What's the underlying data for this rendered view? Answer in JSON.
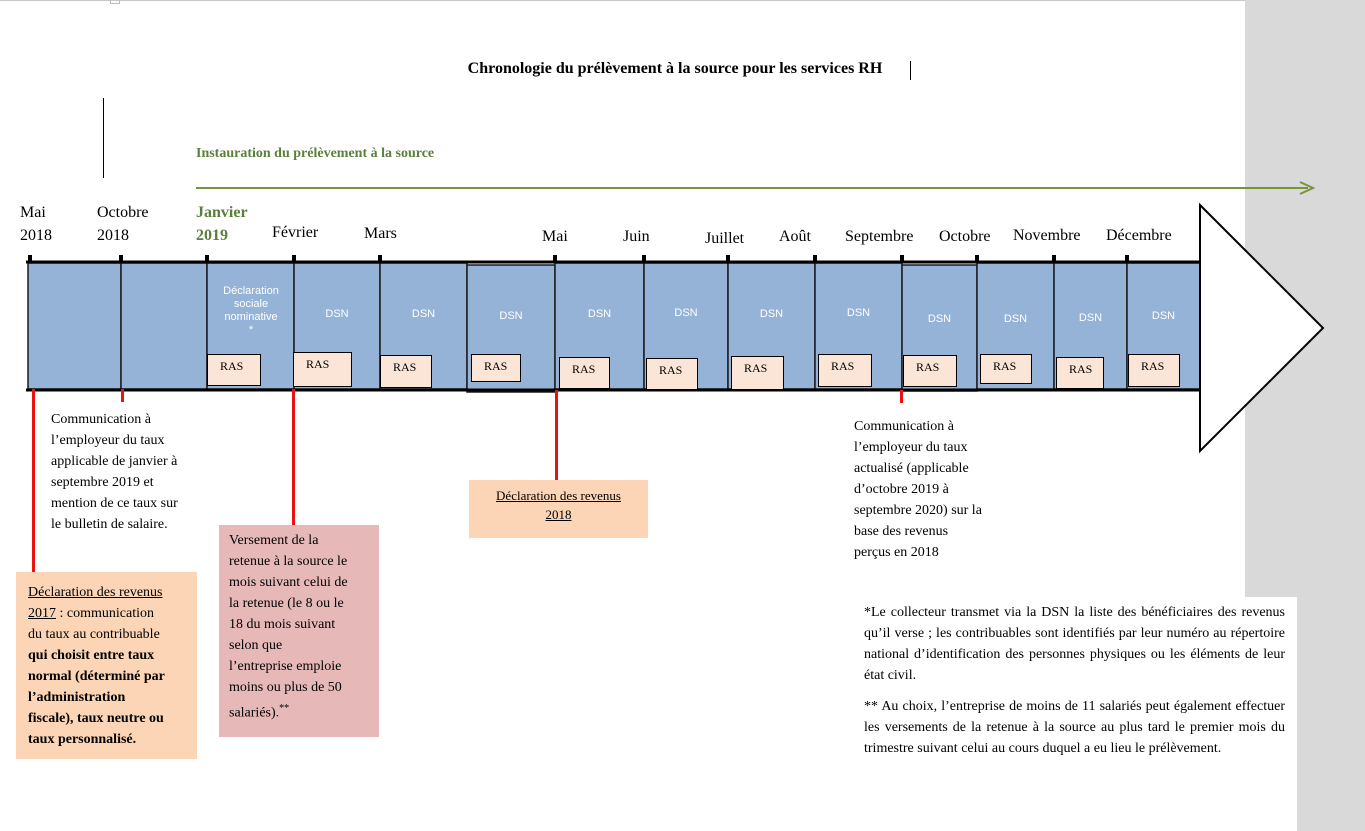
{
  "title": "Chronologie du prélèvement à la source pour les services RH",
  "instauration_label": "Instauration du prélèvement à la source",
  "months": [
    {
      "line1": "Mai",
      "line2": "2018"
    },
    {
      "line1": "Octobre",
      "line2": "2018"
    },
    {
      "line1": "Janvier",
      "line2": "2019"
    },
    {
      "line1": "Février"
    },
    {
      "line1": "Mars"
    },
    {
      "line1": "Mai"
    },
    {
      "line1": "Juin"
    },
    {
      "line1": "Juillet"
    },
    {
      "line1": "Août"
    },
    {
      "line1": "Septembre"
    },
    {
      "line1": "Octobre"
    },
    {
      "line1": "Novembre"
    },
    {
      "line1": "Décembre"
    }
  ],
  "dsn_first": {
    "line1": "Déclaration",
    "line2": "sociale",
    "line3": "nominative",
    "line4": "*"
  },
  "dsn_label": "DSN",
  "ras_label": "RAS",
  "note_communication_1": {
    "l1": "Communication à",
    "l2": "l’employeur du taux",
    "l3": "applicable de janvier à",
    "l4": "septembre 2019 et",
    "l5": "mention de ce taux sur",
    "l6": "le bulletin de salaire."
  },
  "note_communication_2": {
    "l1": "Communication à",
    "l2": "l’employeur du taux",
    "l3": "actualisé (applicable",
    "l4": "d’octobre 2019 à",
    "l5": "septembre 2020) sur la",
    "l6": "base des revenus",
    "l7": "perçus en 2018"
  },
  "box_declaration_2017": {
    "u1": "Déclaration des revenus",
    "u2": "2017",
    "t1": " : communication",
    "t2": "du taux au contribuable",
    "b1": "qui choisit entre taux",
    "b2": "normal (déterminé par",
    "b3": "l’administration",
    "b4": "fiscale), taux neutre ou",
    "b5": "taux personnalisé."
  },
  "box_versement": {
    "l1": "Versement de la",
    "l2": "retenue à la source le",
    "l3": "mois suivant celui de",
    "l4": "la retenue (le 8 ou le",
    "l5": "18 du mois suivant",
    "l6": "selon que",
    "l7": "l’entreprise emploie",
    "l8": "moins ou plus de 50",
    "l9": "salariés).",
    "l9b": "**"
  },
  "box_declaration_2018": {
    "l1": "Déclaration des revenus",
    "l2": "2018"
  },
  "footnote_1": "*Le collecteur transmet via la DSN la liste des bénéficiaires des revenus qu’il verse ; les contribuables sont identifiés par leur numéro au répertoire national  d’identification des personnes physiques ou les éléments de leur état civil.",
  "footnote_2": "** Au choix, l’entreprise de moins de 11 salariés peut également effectuer les versements de la retenue à la source au plus tard le premier mois du trimestre suivant celui au cours duquel a eu lieu le prélèvement.",
  "colors": {
    "segment_fill": "#95b3d7",
    "ras_fill": "#fbe5d6",
    "green": "#5b7f3b",
    "red_marker": "#ee1111",
    "orange_box": "#fbd5b5",
    "pink_box": "#e6b9b8"
  }
}
